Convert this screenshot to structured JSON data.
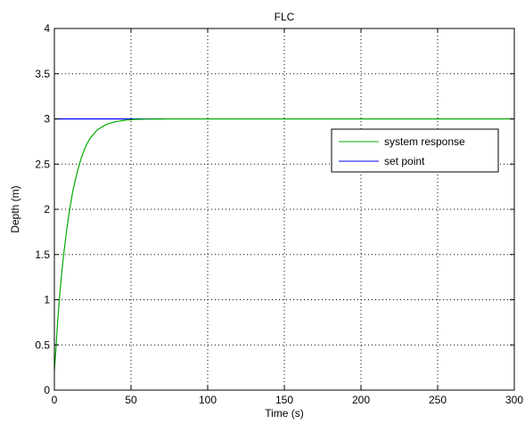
{
  "chart_data": {
    "type": "line",
    "title": "FLC",
    "xlabel": "Time (s)",
    "ylabel": "Depth (m)",
    "xlim": [
      0,
      300
    ],
    "ylim": [
      0,
      4
    ],
    "xticks": [
      0,
      50,
      100,
      150,
      200,
      250,
      300
    ],
    "yticks": [
      0,
      0.5,
      1,
      1.5,
      2,
      2.5,
      3,
      3.5,
      4
    ],
    "xtick_labels": [
      "0",
      "50",
      "100",
      "150",
      "200",
      "250",
      "300"
    ],
    "ytick_labels": [
      "0",
      "0.5",
      "1",
      "1.5",
      "2",
      "2.5",
      "3",
      "3.5",
      "4"
    ],
    "grid": true,
    "legend_position": "upper-right",
    "series": [
      {
        "name": "system response",
        "color": "#00aa00",
        "x": [
          0,
          1,
          2,
          3,
          4,
          5,
          6,
          8,
          10,
          12,
          14,
          16,
          18,
          20,
          22,
          24,
          26,
          28,
          30,
          32,
          34,
          36,
          38,
          40,
          42,
          44,
          46,
          48,
          50,
          52,
          55,
          60,
          65,
          70,
          80,
          100,
          150,
          200,
          250,
          300
        ],
        "y": [
          0.22,
          0.45,
          0.72,
          0.95,
          1.15,
          1.33,
          1.49,
          1.77,
          2.0,
          2.2,
          2.35,
          2.48,
          2.59,
          2.68,
          2.75,
          2.8,
          2.84,
          2.88,
          2.9,
          2.92,
          2.94,
          2.95,
          2.96,
          2.97,
          2.975,
          2.98,
          2.985,
          2.99,
          2.99,
          2.995,
          2.995,
          2.998,
          2.999,
          3.0,
          3.0,
          3.0,
          3.0,
          3.0,
          3.0,
          3.0
        ]
      },
      {
        "name": "set point",
        "color": "#0000ff",
        "x": [
          0,
          72
        ],
        "y": [
          3.0,
          3.0
        ]
      }
    ]
  }
}
